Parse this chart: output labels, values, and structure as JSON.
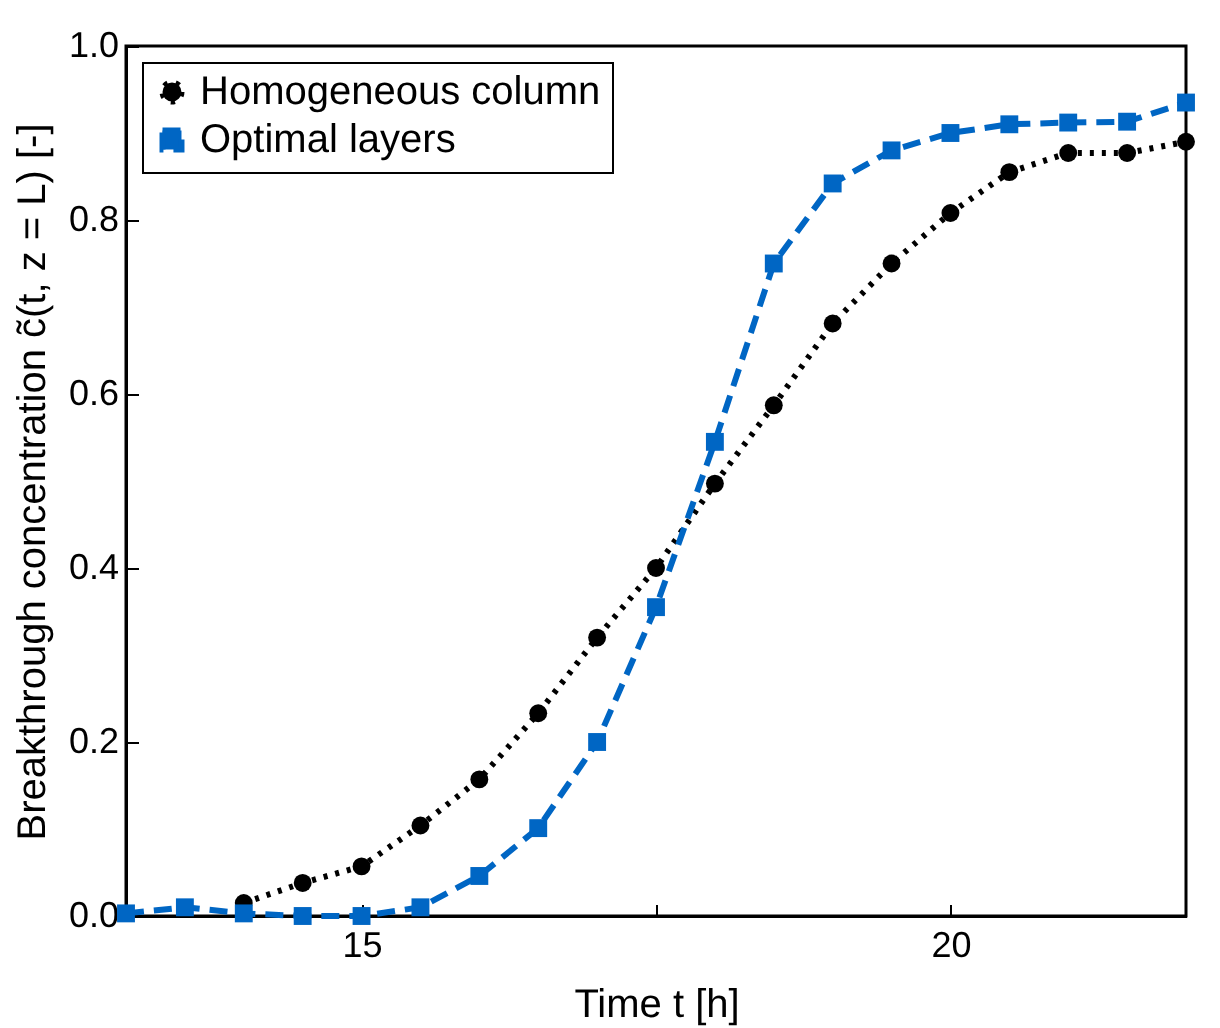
{
  "chart_data": {
    "type": "line",
    "xlabel": "Time t [h]",
    "ylabel": "Breakthrough concentration c̃(t, z = L) [-]",
    "xlim": [
      13,
      22
    ],
    "xticks": [
      15,
      {
        "value": 17.5,
        "label": null
      },
      20
    ],
    "ylim": [
      0,
      1
    ],
    "yticks": [
      "0.0",
      0.2,
      0.4,
      0.6,
      0.8,
      "1.0"
    ],
    "grid": false,
    "legend": "top left",
    "series": [
      {
        "name": "Homogeneous column",
        "color": "#000000",
        "line_style": "dotted",
        "marker": "circle",
        "x": [
          14,
          14.5,
          15,
          15.5,
          16,
          16.5,
          17,
          17.5,
          18,
          18.5,
          19,
          19.5,
          20,
          20.5,
          21,
          21.5,
          22
        ],
        "values": [
          0.015,
          0.038,
          0.057,
          0.104,
          0.157,
          0.233,
          0.32,
          0.4,
          0.497,
          0.587,
          0.681,
          0.75,
          0.808,
          0.855,
          0.877,
          0.877,
          0.89
        ]
      },
      {
        "name": "Optimal layers",
        "color": "#0066c4",
        "line_style": "dashed",
        "marker": "square",
        "x": [
          13,
          13.5,
          14,
          14.5,
          15,
          15.5,
          16,
          16.5,
          17,
          17.5,
          18,
          18.5,
          19,
          19.5,
          20,
          20.5,
          21,
          21.5,
          22
        ],
        "values": [
          0.003,
          0.01,
          0.003,
          0.0,
          0.0,
          0.01,
          0.046,
          0.101,
          0.2,
          0.355,
          0.545,
          0.75,
          0.842,
          0.88,
          0.9,
          0.91,
          0.912,
          0.913,
          0.935
        ]
      }
    ]
  }
}
